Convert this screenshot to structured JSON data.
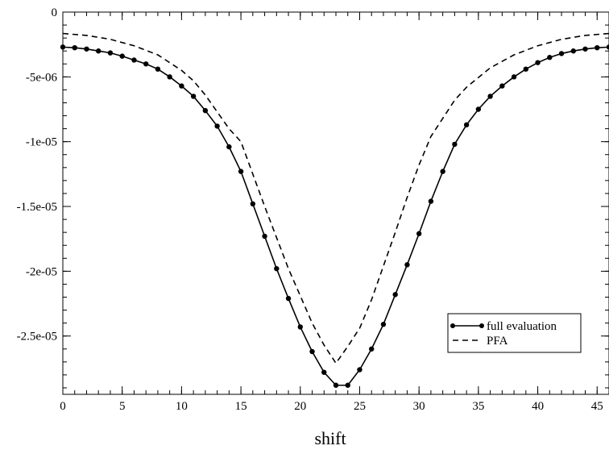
{
  "chart_data": {
    "type": "line",
    "title": "",
    "xlabel": "shift",
    "ylabel": "",
    "xlim": [
      0,
      46
    ],
    "ylim": [
      -2.95e-05,
      0
    ],
    "x_ticks": [
      0,
      5,
      10,
      15,
      20,
      25,
      30,
      35,
      40,
      45
    ],
    "x_tick_labels": [
      "0",
      "5",
      "10",
      "15",
      "20",
      "25",
      "30",
      "35",
      "40",
      "45"
    ],
    "x_minor_step": 1,
    "y_ticks": [
      0,
      -5e-06,
      -1e-05,
      -1.5e-05,
      -2e-05,
      -2.5e-05
    ],
    "y_tick_labels": [
      "0",
      "-5e-06",
      "-1e-05",
      "-1.5e-05",
      "-2e-05",
      "-2.5e-05"
    ],
    "y_minor_step": 1e-06,
    "grid": false,
    "legend_position": "bottom-right",
    "series": [
      {
        "name": "full evaluation",
        "style": "solid-with-circle-markers",
        "color": "#000000",
        "x": [
          0,
          1,
          2,
          3,
          4,
          5,
          6,
          7,
          8,
          9,
          10,
          11,
          12,
          13,
          14,
          15,
          16,
          17,
          18,
          19,
          20,
          21,
          22,
          23,
          24,
          25,
          26,
          27,
          28,
          29,
          30,
          31,
          32,
          33,
          34,
          35,
          36,
          37,
          38,
          39,
          40,
          41,
          42,
          43,
          44,
          45,
          46
        ],
        "y": [
          -2.7e-06,
          -2.75e-06,
          -2.85e-06,
          -3e-06,
          -3.15e-06,
          -3.4e-06,
          -3.7e-06,
          -4e-06,
          -4.4e-06,
          -5e-06,
          -5.7e-06,
          -6.5e-06,
          -7.6e-06,
          -8.8e-06,
          -1.04e-05,
          -1.23e-05,
          -1.48e-05,
          -1.73e-05,
          -1.98e-05,
          -2.21e-05,
          -2.43e-05,
          -2.62e-05,
          -2.78e-05,
          -2.88e-05,
          -2.88e-05,
          -2.76e-05,
          -2.6e-05,
          -2.41e-05,
          -2.18e-05,
          -1.95e-05,
          -1.71e-05,
          -1.46e-05,
          -1.23e-05,
          -1.02e-05,
          -8.7e-06,
          -7.5e-06,
          -6.5e-06,
          -5.7e-06,
          -5e-06,
          -4.4e-06,
          -3.9e-06,
          -3.5e-06,
          -3.2e-06,
          -3e-06,
          -2.85e-06,
          -2.75e-06,
          -2.7e-06
        ]
      },
      {
        "name": "PFA",
        "style": "dashed",
        "color": "#000000",
        "x": [
          0,
          2,
          4,
          6,
          8,
          10,
          11,
          12,
          13,
          14,
          15,
          16,
          17,
          18,
          19,
          20,
          21,
          22,
          23,
          24,
          25,
          26,
          27,
          28,
          29,
          30,
          31,
          32,
          33,
          34,
          36,
          38,
          40,
          42,
          44,
          46
        ],
        "y": [
          -1.65e-06,
          -1.8e-06,
          -2.1e-06,
          -2.6e-06,
          -3.3e-06,
          -4.5e-06,
          -5.3e-06,
          -6.4e-06,
          -7.7e-06,
          -9e-06,
          -1e-05,
          -1.25e-05,
          -1.5e-05,
          -1.74e-05,
          -1.98e-05,
          -2.19e-05,
          -2.4e-05,
          -2.57e-05,
          -2.71e-05,
          -2.58e-05,
          -2.44e-05,
          -2.22e-05,
          -1.96e-05,
          -1.7e-05,
          -1.43e-05,
          -1.18e-05,
          -9.6e-06,
          -8.2e-06,
          -6.8e-06,
          -5.8e-06,
          -4.3e-06,
          -3.3e-06,
          -2.6e-06,
          -2.1e-06,
          -1.8e-06,
          -1.65e-06
        ]
      }
    ]
  }
}
